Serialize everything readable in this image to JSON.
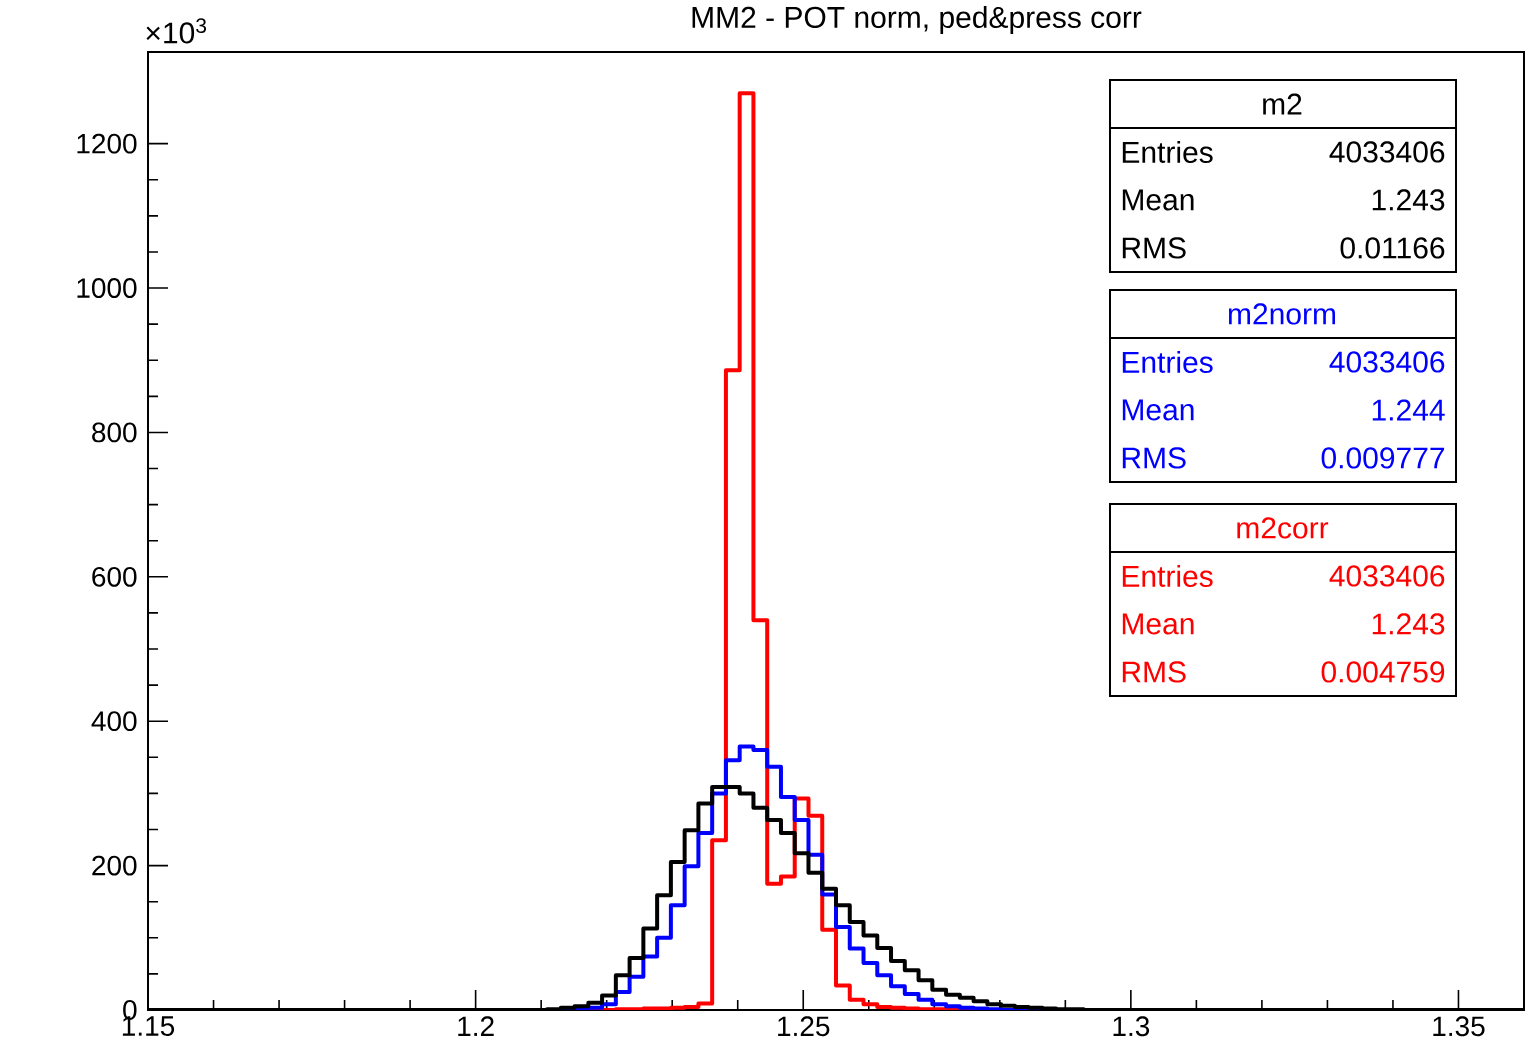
{
  "chart_data": {
    "type": "histogram",
    "title": "MM2 - POT norm, ped&press corr",
    "bins": [
      1.15,
      1.1521,
      1.1542,
      1.1563,
      1.1584,
      1.1605,
      1.1626,
      1.1647,
      1.1668,
      1.1689,
      1.171,
      1.1731,
      1.1752,
      1.1773,
      1.1794,
      1.1815,
      1.1836,
      1.1857,
      1.1878,
      1.1899,
      1.192,
      1.1941,
      1.1962,
      1.1983,
      1.2004,
      1.2025,
      1.2046,
      1.2067,
      1.2088,
      1.2109,
      1.213,
      1.2151,
      1.2172,
      1.2193,
      1.2214,
      1.2235,
      1.2256,
      1.2277,
      1.2298,
      1.2319,
      1.234,
      1.2361,
      1.2382,
      1.2403,
      1.2424,
      1.2445,
      1.2466,
      1.2487,
      1.2508,
      1.2529,
      1.255,
      1.2571,
      1.2592,
      1.2613,
      1.2634,
      1.2655,
      1.2676,
      1.2697,
      1.2718,
      1.2739,
      1.276,
      1.2781,
      1.2802,
      1.2823,
      1.2844,
      1.2865,
      1.2886,
      1.2907,
      1.2928,
      1.2949,
      1.297,
      1.2991,
      1.3012,
      1.3033,
      1.3054,
      1.3075,
      1.3096,
      1.3117,
      1.3138,
      1.3159,
      1.318,
      1.3201,
      1.3222,
      1.3243,
      1.3264,
      1.3285,
      1.3306,
      1.3327,
      1.3348,
      1.3369,
      1.339,
      1.3411,
      1.3432,
      1.3453,
      1.3474,
      1.3495,
      1.3516,
      1.3537,
      1.3558,
      1.3579,
      1.36
    ],
    "series": [
      {
        "name": "m2",
        "color": "#000000",
        "values": [
          0,
          0,
          0,
          0,
          0,
          0,
          0,
          0,
          0,
          0,
          0,
          0,
          0,
          0,
          0,
          0,
          0,
          0,
          0,
          0,
          0,
          0,
          0,
          0,
          0,
          0,
          0,
          0,
          0,
          1,
          3,
          5,
          10,
          20,
          48,
          72,
          113,
          159,
          205,
          249,
          286,
          309,
          309,
          300,
          280,
          263,
          245,
          217,
          190,
          168,
          145,
          122,
          103,
          86,
          68,
          55,
          41,
          28,
          21,
          17,
          12,
          8,
          6,
          4,
          3,
          2,
          1,
          1,
          0,
          0,
          0,
          0,
          0,
          0,
          0,
          0,
          0,
          0,
          0,
          0,
          0,
          0,
          0,
          0,
          0,
          0,
          0,
          0,
          0,
          0,
          0,
          0,
          0,
          0,
          0,
          0,
          0,
          0,
          0,
          0
        ]
      },
      {
        "name": "m2norm",
        "color": "#0000ff",
        "values": [
          0,
          0,
          0,
          0,
          0,
          0,
          0,
          0,
          0,
          0,
          0,
          0,
          0,
          0,
          0,
          0,
          0,
          0,
          0,
          0,
          0,
          0,
          0,
          0,
          0,
          0,
          0,
          0,
          0,
          0,
          1,
          2,
          3,
          8,
          25,
          46,
          74,
          100,
          145,
          199,
          245,
          300,
          346,
          365,
          360,
          337,
          295,
          263,
          215,
          160,
          115,
          85,
          65,
          48,
          33,
          22,
          14,
          8,
          5,
          3,
          2,
          1,
          0,
          0,
          0,
          0,
          0,
          0,
          0,
          0,
          0,
          0,
          0,
          0,
          0,
          0,
          0,
          0,
          0,
          0,
          0,
          0,
          0,
          0,
          0,
          0,
          0,
          0,
          0,
          0,
          0,
          0,
          0,
          0,
          0,
          0,
          0,
          0,
          0,
          0
        ]
      },
      {
        "name": "m2corr",
        "color": "#ff0000",
        "values": [
          0,
          0,
          0,
          0,
          0,
          0,
          0,
          0,
          0,
          0,
          0,
          0,
          0,
          0,
          0,
          0,
          0,
          0,
          0,
          0,
          0,
          0,
          0,
          0,
          0,
          0,
          0,
          0,
          0,
          0,
          0,
          0,
          0,
          0,
          1,
          1,
          2,
          2,
          3,
          4,
          9,
          235,
          886,
          1270,
          540,
          175,
          185,
          293,
          269,
          111,
          34,
          14,
          8,
          4,
          3,
          2,
          1,
          1,
          1,
          1,
          0,
          0,
          0,
          0,
          0,
          0,
          0,
          0,
          0,
          0,
          0,
          0,
          0,
          0,
          0,
          0,
          0,
          0,
          0,
          0,
          0,
          0,
          0,
          0,
          0,
          0,
          0,
          0,
          0,
          0,
          0,
          0,
          0,
          0,
          0,
          0,
          0,
          0,
          0,
          0
        ]
      }
    ],
    "xlim": [
      1.15,
      1.36
    ],
    "ylim": [
      0,
      1327
    ],
    "xticks": [
      1.15,
      1.2,
      1.25,
      1.3,
      1.35
    ],
    "yticks": [
      0,
      200,
      400,
      600,
      800,
      1000,
      1200
    ],
    "annotations": [
      "×10$^{3}$",
      "Entries",
      "4033406",
      "Mean",
      "1.243",
      "RMS",
      "0.01166",
      "Entries",
      "4033406",
      "Mean",
      "1.244",
      "RMS",
      "0.009777",
      "Entries",
      "4033406",
      "Mean",
      "1.243",
      "RMS",
      "0.004759"
    ]
  }
}
